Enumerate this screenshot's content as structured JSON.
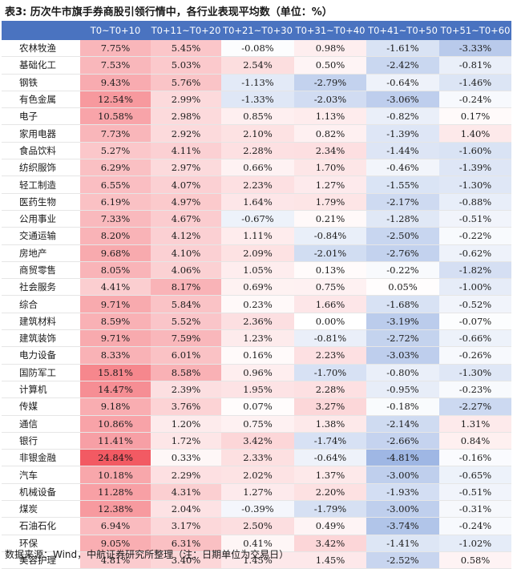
{
  "title": "表3: 历次牛市旗手券商股引领行情中，各行业表现平均数（单位：%）",
  "footer": "数据来源：Wind，中航证券研究所整理（注：日期单位为交易日）",
  "chart_data": {
    "type": "table",
    "columns": [
      "",
      "T0~T0+10",
      "T0+11~T0+20",
      "T0+21~T0+30",
      "T0+31~T0+40",
      "T0+41~T0+50",
      "T0+51~T0+60"
    ],
    "rows": [
      {
        "name": "农林牧渔",
        "values": [
          "7.75%",
          "5.45%",
          "-0.08%",
          "0.98%",
          "-1.61%",
          "-3.33%"
        ],
        "nums": [
          7.75,
          5.45,
          -0.08,
          0.98,
          -1.61,
          -3.33
        ]
      },
      {
        "name": "基础化工",
        "values": [
          "7.53%",
          "5.03%",
          "2.54%",
          "0.50%",
          "-2.42%",
          "-0.81%"
        ],
        "nums": [
          7.53,
          5.03,
          2.54,
          0.5,
          -2.42,
          -0.81
        ]
      },
      {
        "name": "钢铁",
        "values": [
          "9.43%",
          "5.76%",
          "-1.13%",
          "-2.79%",
          "-0.64%",
          "-1.46%"
        ],
        "nums": [
          9.43,
          5.76,
          -1.13,
          -2.79,
          -0.64,
          -1.46
        ]
      },
      {
        "name": "有色金属",
        "values": [
          "12.54%",
          "2.99%",
          "-1.33%",
          "-2.03%",
          "-3.06%",
          "-0.24%"
        ],
        "nums": [
          12.54,
          2.99,
          -1.33,
          -2.03,
          -3.06,
          -0.24
        ]
      },
      {
        "name": "电子",
        "values": [
          "10.58%",
          "2.98%",
          "0.85%",
          "1.13%",
          "-0.82%",
          "0.17%"
        ],
        "nums": [
          10.58,
          2.98,
          0.85,
          1.13,
          -0.82,
          0.17
        ]
      },
      {
        "name": "家用电器",
        "values": [
          "7.73%",
          "2.92%",
          "2.10%",
          "0.82%",
          "-1.39%",
          "1.40%"
        ],
        "nums": [
          7.73,
          2.92,
          2.1,
          0.82,
          -1.39,
          1.4
        ]
      },
      {
        "name": "食品饮料",
        "values": [
          "5.27%",
          "4.11%",
          "2.28%",
          "2.34%",
          "-1.44%",
          "-1.60%"
        ],
        "nums": [
          5.27,
          4.11,
          2.28,
          2.34,
          -1.44,
          -1.6
        ]
      },
      {
        "name": "纺织服饰",
        "values": [
          "6.29%",
          "2.97%",
          "0.66%",
          "1.70%",
          "-0.46%",
          "-1.39%"
        ],
        "nums": [
          6.29,
          2.97,
          0.66,
          1.7,
          -0.46,
          -1.39
        ]
      },
      {
        "name": "轻工制造",
        "values": [
          "6.55%",
          "4.07%",
          "2.23%",
          "1.27%",
          "-1.55%",
          "-1.30%"
        ],
        "nums": [
          6.55,
          4.07,
          2.23,
          1.27,
          -1.55,
          -1.3
        ]
      },
      {
        "name": "医药生物",
        "values": [
          "6.19%",
          "4.97%",
          "1.64%",
          "1.79%",
          "-2.17%",
          "-0.88%"
        ],
        "nums": [
          6.19,
          4.97,
          1.64,
          1.79,
          -2.17,
          -0.88
        ]
      },
      {
        "name": "公用事业",
        "values": [
          "7.33%",
          "4.67%",
          "-0.67%",
          "0.21%",
          "-1.28%",
          "-0.51%"
        ],
        "nums": [
          7.33,
          4.67,
          -0.67,
          0.21,
          -1.28,
          -0.51
        ]
      },
      {
        "name": "交通运输",
        "values": [
          "8.20%",
          "4.12%",
          "1.11%",
          "-0.84%",
          "-2.50%",
          "-0.22%"
        ],
        "nums": [
          8.2,
          4.12,
          1.11,
          -0.84,
          -2.5,
          -0.22
        ]
      },
      {
        "name": "房地产",
        "values": [
          "9.68%",
          "4.10%",
          "2.09%",
          "-2.01%",
          "-2.76%",
          "-0.62%"
        ],
        "nums": [
          9.68,
          4.1,
          2.09,
          -2.01,
          -2.76,
          -0.62
        ]
      },
      {
        "name": "商贸零售",
        "values": [
          "8.05%",
          "4.06%",
          "1.05%",
          "0.13%",
          "-0.22%",
          "-1.82%"
        ],
        "nums": [
          8.05,
          4.06,
          1.05,
          0.13,
          -0.22,
          -1.82
        ]
      },
      {
        "name": "社会服务",
        "values": [
          "4.41%",
          "8.17%",
          "0.69%",
          "0.75%",
          "0.05%",
          "-1.00%"
        ],
        "nums": [
          4.41,
          8.17,
          0.69,
          0.75,
          0.05,
          -1.0
        ]
      },
      {
        "name": "综合",
        "values": [
          "9.71%",
          "5.84%",
          "0.23%",
          "1.66%",
          "-1.68%",
          "-0.52%"
        ],
        "nums": [
          9.71,
          5.84,
          0.23,
          1.66,
          -1.68,
          -0.52
        ]
      },
      {
        "name": "建筑材料",
        "values": [
          "8.59%",
          "5.52%",
          "2.36%",
          "0.00%",
          "-3.19%",
          "-0.07%"
        ],
        "nums": [
          8.59,
          5.52,
          2.36,
          0.0,
          -3.19,
          -0.07
        ]
      },
      {
        "name": "建筑装饰",
        "values": [
          "9.71%",
          "7.59%",
          "1.23%",
          "-0.81%",
          "-2.72%",
          "-0.66%"
        ],
        "nums": [
          9.71,
          7.59,
          1.23,
          -0.81,
          -2.72,
          -0.66
        ]
      },
      {
        "name": "电力设备",
        "values": [
          "8.33%",
          "6.01%",
          "0.16%",
          "2.23%",
          "-3.03%",
          "-0.26%"
        ],
        "nums": [
          8.33,
          6.01,
          0.16,
          2.23,
          -3.03,
          -0.26
        ]
      },
      {
        "name": "国防军工",
        "values": [
          "15.81%",
          "8.58%",
          "0.96%",
          "-1.70%",
          "-0.80%",
          "-1.30%"
        ],
        "nums": [
          15.81,
          8.58,
          0.96,
          -1.7,
          -0.8,
          -1.3
        ]
      },
      {
        "name": "计算机",
        "values": [
          "14.47%",
          "2.39%",
          "1.95%",
          "2.28%",
          "-0.95%",
          "-0.23%"
        ],
        "nums": [
          14.47,
          2.39,
          1.95,
          2.28,
          -0.95,
          -0.23
        ]
      },
      {
        "name": "传媒",
        "values": [
          "9.18%",
          "3.76%",
          "0.07%",
          "3.27%",
          "-0.18%",
          "-2.27%"
        ],
        "nums": [
          9.18,
          3.76,
          0.07,
          3.27,
          -0.18,
          -2.27
        ]
      },
      {
        "name": "通信",
        "values": [
          "10.86%",
          "1.20%",
          "0.75%",
          "1.38%",
          "-2.14%",
          "1.31%"
        ],
        "nums": [
          10.86,
          1.2,
          0.75,
          1.38,
          -2.14,
          1.31
        ]
      },
      {
        "name": "银行",
        "values": [
          "11.41%",
          "1.72%",
          "3.42%",
          "-1.74%",
          "-2.66%",
          "0.84%"
        ],
        "nums": [
          11.41,
          1.72,
          3.42,
          -1.74,
          -2.66,
          0.84
        ]
      },
      {
        "name": "非银金融",
        "values": [
          "24.84%",
          "0.33%",
          "2.33%",
          "-0.64%",
          "-4.81%",
          "-0.16%"
        ],
        "nums": [
          24.84,
          0.33,
          2.33,
          -0.64,
          -4.81,
          -0.16
        ]
      },
      {
        "name": "汽车",
        "values": [
          "10.18%",
          "2.29%",
          "2.02%",
          "1.37%",
          "-3.00%",
          "-0.65%"
        ],
        "nums": [
          10.18,
          2.29,
          2.02,
          1.37,
          -3.0,
          -0.65
        ]
      },
      {
        "name": "机械设备",
        "values": [
          "11.28%",
          "4.31%",
          "1.27%",
          "2.20%",
          "-1.93%",
          "-0.51%"
        ],
        "nums": [
          11.28,
          4.31,
          1.27,
          2.2,
          -1.93,
          -0.51
        ]
      },
      {
        "name": "煤炭",
        "values": [
          "12.38%",
          "2.04%",
          "-0.39%",
          "-1.79%",
          "-3.00%",
          "-0.31%"
        ],
        "nums": [
          12.38,
          2.04,
          -0.39,
          -1.79,
          -3.0,
          -0.31
        ]
      },
      {
        "name": "石油石化",
        "values": [
          "6.94%",
          "3.17%",
          "2.50%",
          "0.49%",
          "-3.74%",
          "-0.24%"
        ],
        "nums": [
          6.94,
          3.17,
          2.5,
          0.49,
          -3.74,
          -0.24
        ]
      },
      {
        "name": "环保",
        "values": [
          "9.05%",
          "6.31%",
          "0.41%",
          "3.42%",
          "-1.41%",
          "-1.02%"
        ],
        "nums": [
          9.05,
          6.31,
          0.41,
          3.42,
          -1.41,
          -1.02
        ]
      },
      {
        "name": "美容护理",
        "values": [
          "4.81%",
          "3.40%",
          "1.45%",
          "1.45%",
          "-2.52%",
          "0.58%"
        ],
        "nums": [
          4.81,
          3.4,
          1.45,
          1.45,
          -2.52,
          0.58
        ]
      }
    ]
  },
  "colors": {
    "header_bg": "#4a73c0",
    "pos_max": "#f25a63",
    "neg_max": "#5a82cf"
  }
}
